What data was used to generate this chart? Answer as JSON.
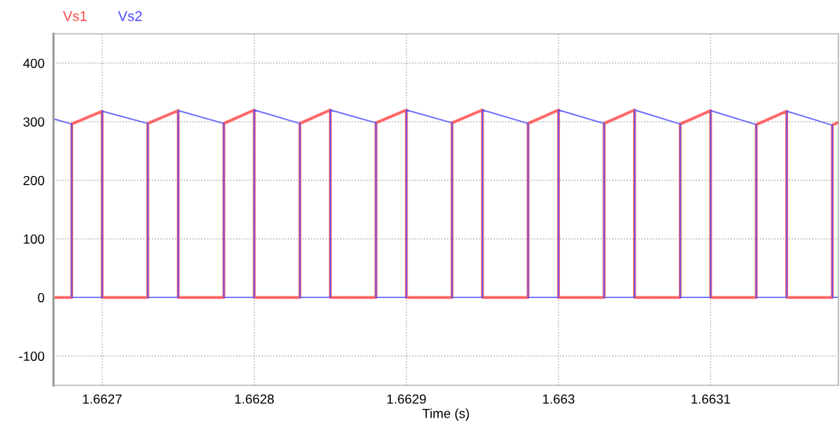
{
  "chart_data": {
    "type": "line",
    "xlabel": "Time (s)",
    "legend": "top left",
    "grid": true,
    "line_style": "solid",
    "marker": "none",
    "xlim": [
      1.662668,
      1.663184
    ],
    "xticks": [
      1.6627,
      1.6628,
      1.6629,
      1.663,
      1.6631
    ],
    "ylim": [
      -150,
      450
    ],
    "yticks": [
      -100,
      0,
      100,
      200,
      300,
      400
    ],
    "series": [
      {
        "name": "Vs1",
        "color": "#ff4d4d",
        "x": [
          1.662668,
          1.66268,
          1.66268,
          1.6627,
          1.6627,
          1.66273,
          1.66273,
          1.66275,
          1.66275,
          1.66278,
          1.66278,
          1.6628,
          1.6628,
          1.66283,
          1.66283,
          1.66285,
          1.66285,
          1.66288,
          1.66288,
          1.6629,
          1.6629,
          1.66293,
          1.66293,
          1.66295,
          1.66295,
          1.66298,
          1.66298,
          1.663,
          1.663,
          1.66303,
          1.66303,
          1.66305,
          1.66305,
          1.66308,
          1.66308,
          1.6631,
          1.6631,
          1.66313,
          1.66313,
          1.66315,
          1.66315,
          1.66318,
          1.66318,
          1.663184
        ],
        "values": [
          0,
          0,
          296,
          318,
          0,
          0,
          297,
          319,
          0,
          0,
          297,
          320,
          0,
          0,
          297,
          320,
          0,
          0,
          298,
          320,
          0,
          0,
          298,
          320,
          0,
          0,
          297,
          320,
          0,
          0,
          297,
          320,
          0,
          0,
          296,
          319,
          0,
          0,
          295,
          318,
          0,
          0,
          294,
          299
        ]
      },
      {
        "name": "Vs2",
        "color": "#4d4dff",
        "x": [
          1.662668,
          1.66268,
          1.66268,
          1.6627,
          1.6627,
          1.66273,
          1.66273,
          1.66275,
          1.66275,
          1.66278,
          1.66278,
          1.6628,
          1.6628,
          1.66283,
          1.66283,
          1.66285,
          1.66285,
          1.66288,
          1.66288,
          1.6629,
          1.6629,
          1.66293,
          1.66293,
          1.66295,
          1.66295,
          1.66298,
          1.66298,
          1.663,
          1.663,
          1.66303,
          1.66303,
          1.66305,
          1.66305,
          1.66308,
          1.66308,
          1.6631,
          1.6631,
          1.66313,
          1.66313,
          1.66315,
          1.66315,
          1.66318,
          1.66318,
          1.663184
        ],
        "values": [
          305,
          296,
          0,
          0,
          318,
          297,
          0,
          0,
          319,
          297,
          0,
          0,
          320,
          297,
          0,
          0,
          320,
          298,
          0,
          0,
          320,
          298,
          0,
          0,
          320,
          297,
          0,
          0,
          320,
          297,
          0,
          0,
          320,
          296,
          0,
          0,
          319,
          295,
          0,
          0,
          318,
          294,
          0,
          0
        ]
      }
    ]
  }
}
